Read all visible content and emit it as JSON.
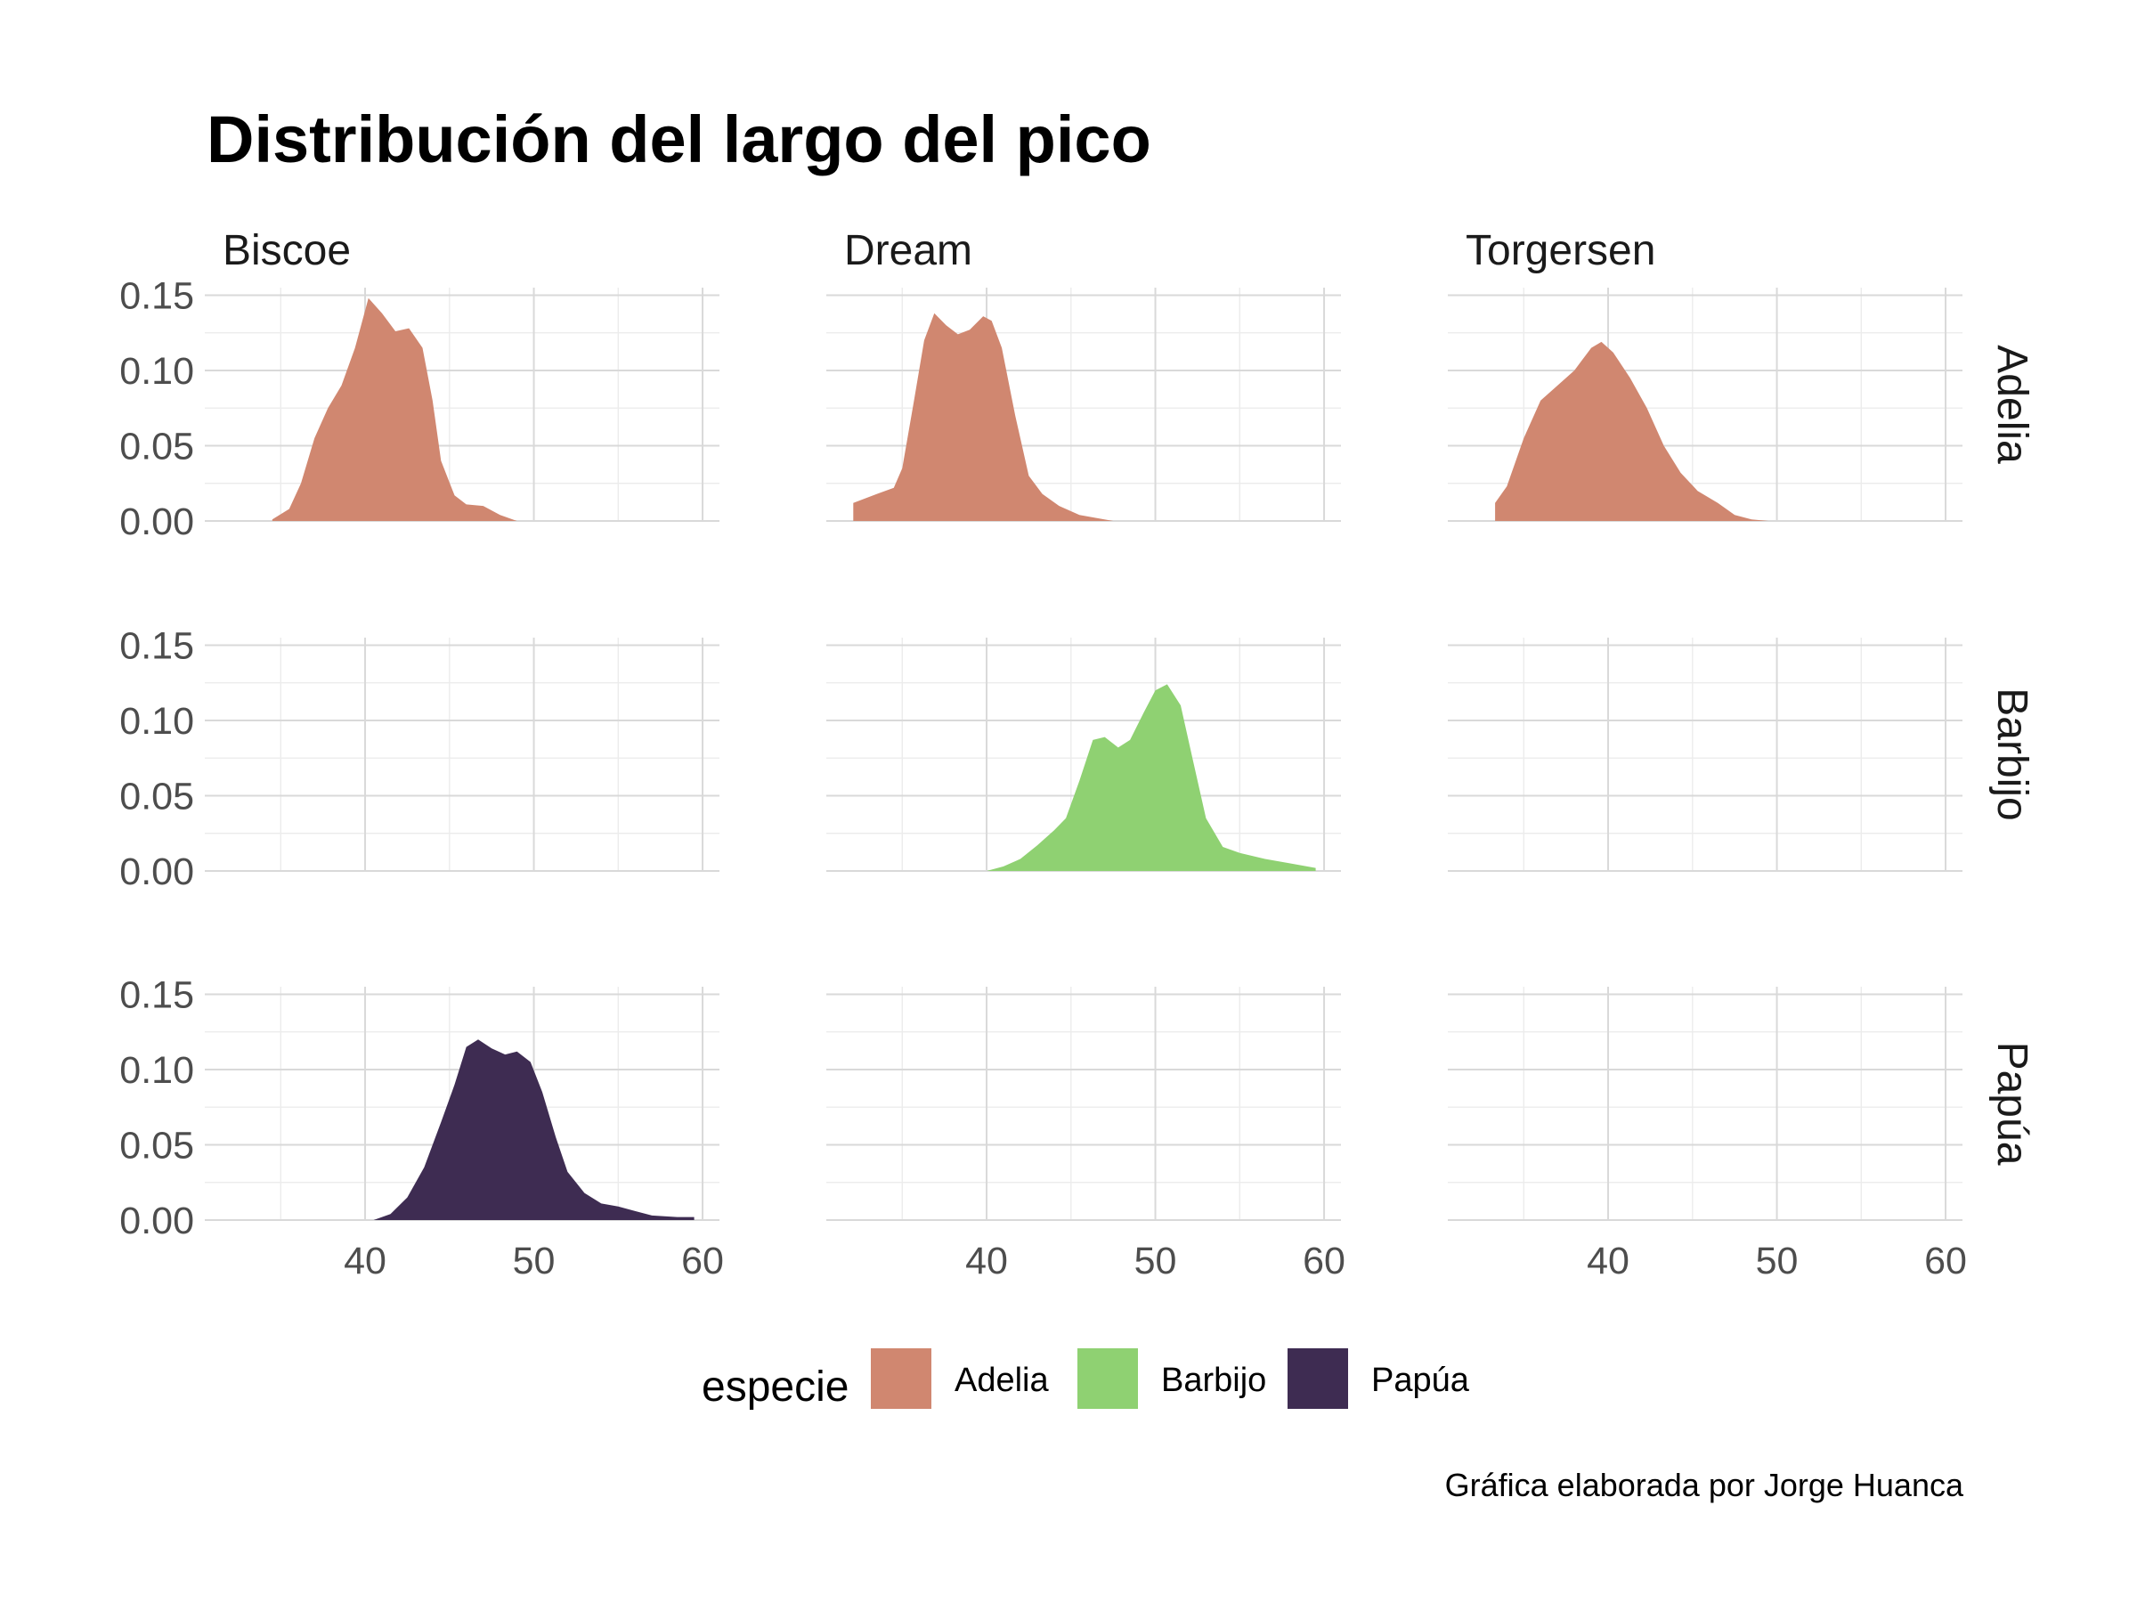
{
  "chart_data": {
    "type": "area",
    "title": "Distribución del largo del pico",
    "caption": "Gráfica elaborada por Jorge Huanca",
    "facet_columns": [
      "Biscoe",
      "Dream",
      "Torgersen"
    ],
    "facet_rows": [
      "Adelia",
      "Barbijo",
      "Papúa"
    ],
    "xlim": [
      30.5,
      61
    ],
    "ylim": [
      0,
      0.155
    ],
    "x_ticks": [
      "40",
      "50",
      "60"
    ],
    "y_ticks": [
      "0.00",
      "0.05",
      "0.10",
      "0.15"
    ],
    "grid": true,
    "legend": {
      "title": "especie",
      "position": "bottom",
      "items": [
        {
          "label": "Adelia",
          "color": "#D08770"
        },
        {
          "label": "Barbijo",
          "color": "#8FD172"
        },
        {
          "label": "Papúa",
          "color": "#3E2C52"
        }
      ]
    },
    "series": [
      {
        "island": "Biscoe",
        "species": "Adelia",
        "color": "#D08770",
        "x": [
          34.5,
          35.5,
          36.2,
          37.0,
          37.8,
          38.6,
          39.4,
          40.2,
          41.0,
          41.8,
          42.6,
          43.4,
          44.0,
          44.5,
          45.3,
          46.0,
          47.0,
          48.0,
          49.0
        ],
        "y": [
          0.001,
          0.008,
          0.025,
          0.055,
          0.075,
          0.09,
          0.115,
          0.148,
          0.138,
          0.126,
          0.128,
          0.115,
          0.08,
          0.04,
          0.017,
          0.011,
          0.01,
          0.004,
          0.0
        ]
      },
      {
        "island": "Dream",
        "species": "Adelia",
        "color": "#D08770",
        "x": [
          32.1,
          33.5,
          34.5,
          35.0,
          35.7,
          36.3,
          36.9,
          37.6,
          38.3,
          39.0,
          39.8,
          40.3,
          40.9,
          41.7,
          42.5,
          43.3,
          44.3,
          45.5,
          46.5,
          47.5
        ],
        "y": [
          0.012,
          0.018,
          0.022,
          0.035,
          0.08,
          0.12,
          0.138,
          0.13,
          0.124,
          0.127,
          0.136,
          0.133,
          0.115,
          0.07,
          0.03,
          0.018,
          0.01,
          0.004,
          0.002,
          0.0
        ],
        "open_left": true
      },
      {
        "island": "Torgersen",
        "species": "Adelia",
        "color": "#D08770",
        "x": [
          33.3,
          34.0,
          35.0,
          36.0,
          37.0,
          38.0,
          39.0,
          39.6,
          40.3,
          41.3,
          42.3,
          43.3,
          44.3,
          45.3,
          46.5,
          47.5,
          48.5,
          49.5
        ],
        "y": [
          0.012,
          0.023,
          0.055,
          0.08,
          0.09,
          0.1,
          0.115,
          0.119,
          0.112,
          0.095,
          0.075,
          0.05,
          0.032,
          0.02,
          0.012,
          0.004,
          0.001,
          0.0
        ],
        "open_left": true
      },
      {
        "island": "Dream",
        "species": "Barbijo",
        "color": "#8FD172",
        "x": [
          40.0,
          41.0,
          42.0,
          43.0,
          44.0,
          44.7,
          45.5,
          46.3,
          47.0,
          47.8,
          48.5,
          49.3,
          50.0,
          50.7,
          51.5,
          52.2,
          53.0,
          54.0,
          55.0,
          56.5,
          58.0,
          59.5
        ],
        "y": [
          0.0,
          0.003,
          0.008,
          0.017,
          0.027,
          0.035,
          0.06,
          0.087,
          0.089,
          0.082,
          0.087,
          0.105,
          0.12,
          0.124,
          0.11,
          0.075,
          0.035,
          0.016,
          0.012,
          0.008,
          0.005,
          0.002
        ]
      },
      {
        "island": "Biscoe",
        "species": "Papúa",
        "color": "#3E2C52",
        "x": [
          40.5,
          41.5,
          42.5,
          43.5,
          44.5,
          45.3,
          46.0,
          46.7,
          47.5,
          48.3,
          49.0,
          49.8,
          50.5,
          51.3,
          52.0,
          53.0,
          54.0,
          55.0,
          56.0,
          57.0,
          58.5,
          59.5
        ],
        "y": [
          0.0,
          0.004,
          0.015,
          0.035,
          0.065,
          0.09,
          0.115,
          0.12,
          0.114,
          0.11,
          0.112,
          0.105,
          0.085,
          0.055,
          0.032,
          0.018,
          0.011,
          0.009,
          0.006,
          0.003,
          0.002,
          0.002
        ]
      }
    ]
  }
}
